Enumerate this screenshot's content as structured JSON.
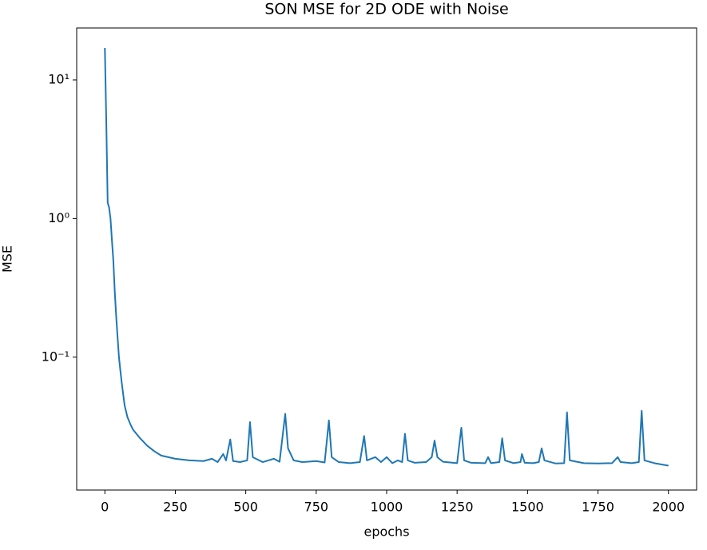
{
  "chart_data": {
    "type": "line",
    "title": "SON MSE for 2D ODE with Noise",
    "x_label": "epochs",
    "y_label": "MSE",
    "log_y": true,
    "grid": false,
    "x": [
      0,
      5,
      10,
      15,
      20,
      25,
      30,
      35,
      40,
      45,
      50,
      55,
      60,
      70,
      80,
      90,
      100,
      125,
      150,
      175,
      200,
      250,
      300,
      350,
      380,
      400,
      420,
      430,
      445,
      455,
      480,
      505,
      515,
      525,
      560,
      600,
      620,
      640,
      650,
      670,
      700,
      750,
      780,
      795,
      805,
      830,
      870,
      905,
      920,
      930,
      960,
      980,
      1000,
      1020,
      1040,
      1055,
      1065,
      1075,
      1100,
      1140,
      1160,
      1170,
      1180,
      1200,
      1250,
      1265,
      1275,
      1300,
      1350,
      1360,
      1370,
      1400,
      1410,
      1420,
      1450,
      1475,
      1480,
      1490,
      1520,
      1540,
      1550,
      1560,
      1600,
      1630,
      1640,
      1650,
      1700,
      1750,
      1800,
      1820,
      1830,
      1870,
      1895,
      1905,
      1915,
      1950,
      2000
    ],
    "series": [
      {
        "name": "MSE",
        "color": "#1f77b4",
        "values": [
          17,
          5,
          1.3,
          1.2,
          1.0,
          0.7,
          0.5,
          0.3,
          0.2,
          0.14,
          0.1,
          0.08,
          0.065,
          0.045,
          0.037,
          0.033,
          0.03,
          0.026,
          0.023,
          0.021,
          0.0195,
          0.0185,
          0.018,
          0.0178,
          0.0185,
          0.0175,
          0.02,
          0.018,
          0.0255,
          0.0178,
          0.0175,
          0.018,
          0.034,
          0.019,
          0.0175,
          0.0185,
          0.0176,
          0.039,
          0.022,
          0.018,
          0.0175,
          0.0178,
          0.0174,
          0.035,
          0.019,
          0.0175,
          0.0172,
          0.0175,
          0.027,
          0.018,
          0.019,
          0.0175,
          0.019,
          0.0172,
          0.018,
          0.0175,
          0.028,
          0.018,
          0.0173,
          0.0175,
          0.019,
          0.025,
          0.019,
          0.0176,
          0.0172,
          0.031,
          0.018,
          0.0173,
          0.0172,
          0.019,
          0.0172,
          0.0175,
          0.026,
          0.018,
          0.0172,
          0.0175,
          0.02,
          0.0173,
          0.0172,
          0.0175,
          0.022,
          0.018,
          0.0171,
          0.0172,
          0.04,
          0.018,
          0.0172,
          0.0171,
          0.0172,
          0.019,
          0.0175,
          0.0172,
          0.0175,
          0.041,
          0.018,
          0.0172,
          0.0165
        ]
      }
    ],
    "xlim": [
      -100,
      2100
    ],
    "xticks": [
      0,
      250,
      500,
      750,
      1000,
      1250,
      1500,
      1750,
      2000
    ],
    "ylim": [
      0.011,
      23.7
    ],
    "yticks": [
      {
        "value": 0.1,
        "label": "10⁻¹"
      },
      {
        "value": 1,
        "label": "10⁰"
      },
      {
        "value": 10,
        "label": "10¹"
      }
    ]
  }
}
